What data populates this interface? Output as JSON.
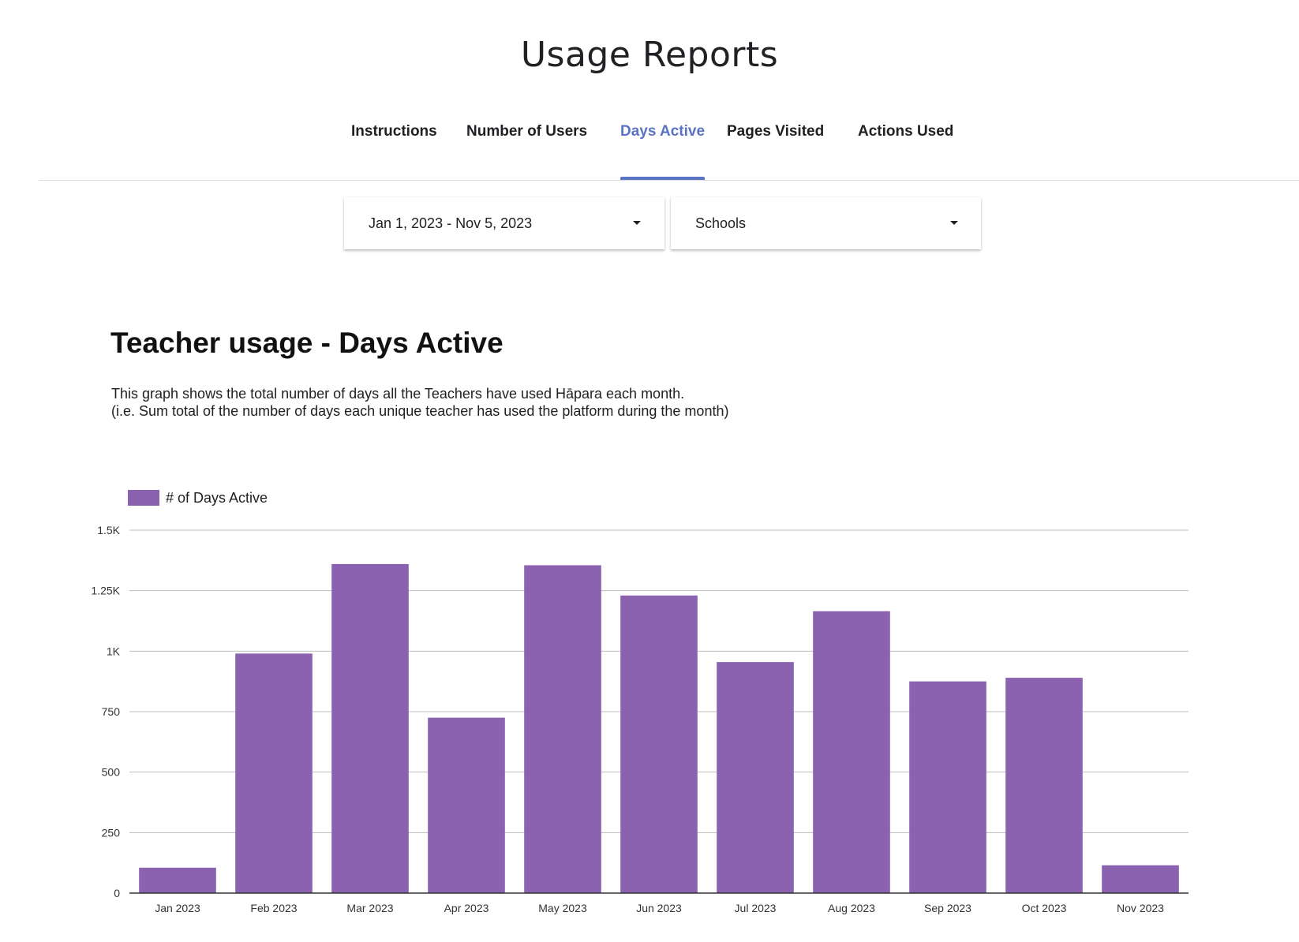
{
  "page_title": "Usage Reports",
  "tabs": [
    {
      "label": "Instructions",
      "active": false
    },
    {
      "label": "Number of Users",
      "active": false
    },
    {
      "label": "Days Active",
      "active": true
    },
    {
      "label": "Pages Visited",
      "active": false
    },
    {
      "label": "Actions Used",
      "active": false
    }
  ],
  "filters": {
    "date_range": {
      "value": "Jan 1, 2023 - Nov 5, 2023",
      "icon": "caret-down-icon"
    },
    "scope": {
      "value": "Schools",
      "icon": "caret-down-icon"
    }
  },
  "section": {
    "title": "Teacher usage - Days Active",
    "description_line1": "This graph shows the total number of days all the Teachers have used Hāpara each month.",
    "description_line2": "(i.e. Sum total of the number of days each unique teacher has used the platform during the month)"
  },
  "colors": {
    "accent": "#5b73c4",
    "bar": "#8b62b0",
    "grid": "#bdbdbd",
    "axis": "#333333"
  },
  "chart_data": {
    "type": "bar",
    "categories": [
      "Jan 2023",
      "Feb 2023",
      "Mar 2023",
      "Apr 2023",
      "May 2023",
      "Jun 2023",
      "Jul 2023",
      "Aug 2023",
      "Sep 2023",
      "Oct 2023",
      "Nov 2023"
    ],
    "series": [
      {
        "name": "# of Days Active",
        "values": [
          105,
          990,
          1360,
          725,
          1355,
          1230,
          955,
          1165,
          875,
          890,
          115
        ]
      }
    ],
    "title": "",
    "xlabel": "",
    "ylabel": "",
    "ylim": [
      0,
      1500
    ],
    "yticks": [
      0,
      250,
      500,
      750,
      1000,
      1250,
      1500
    ],
    "ytick_labels": [
      "0",
      "250",
      "500",
      "750",
      "1K",
      "1.25K",
      "1.5K"
    ],
    "grid": true,
    "legend_position": "top-left"
  }
}
